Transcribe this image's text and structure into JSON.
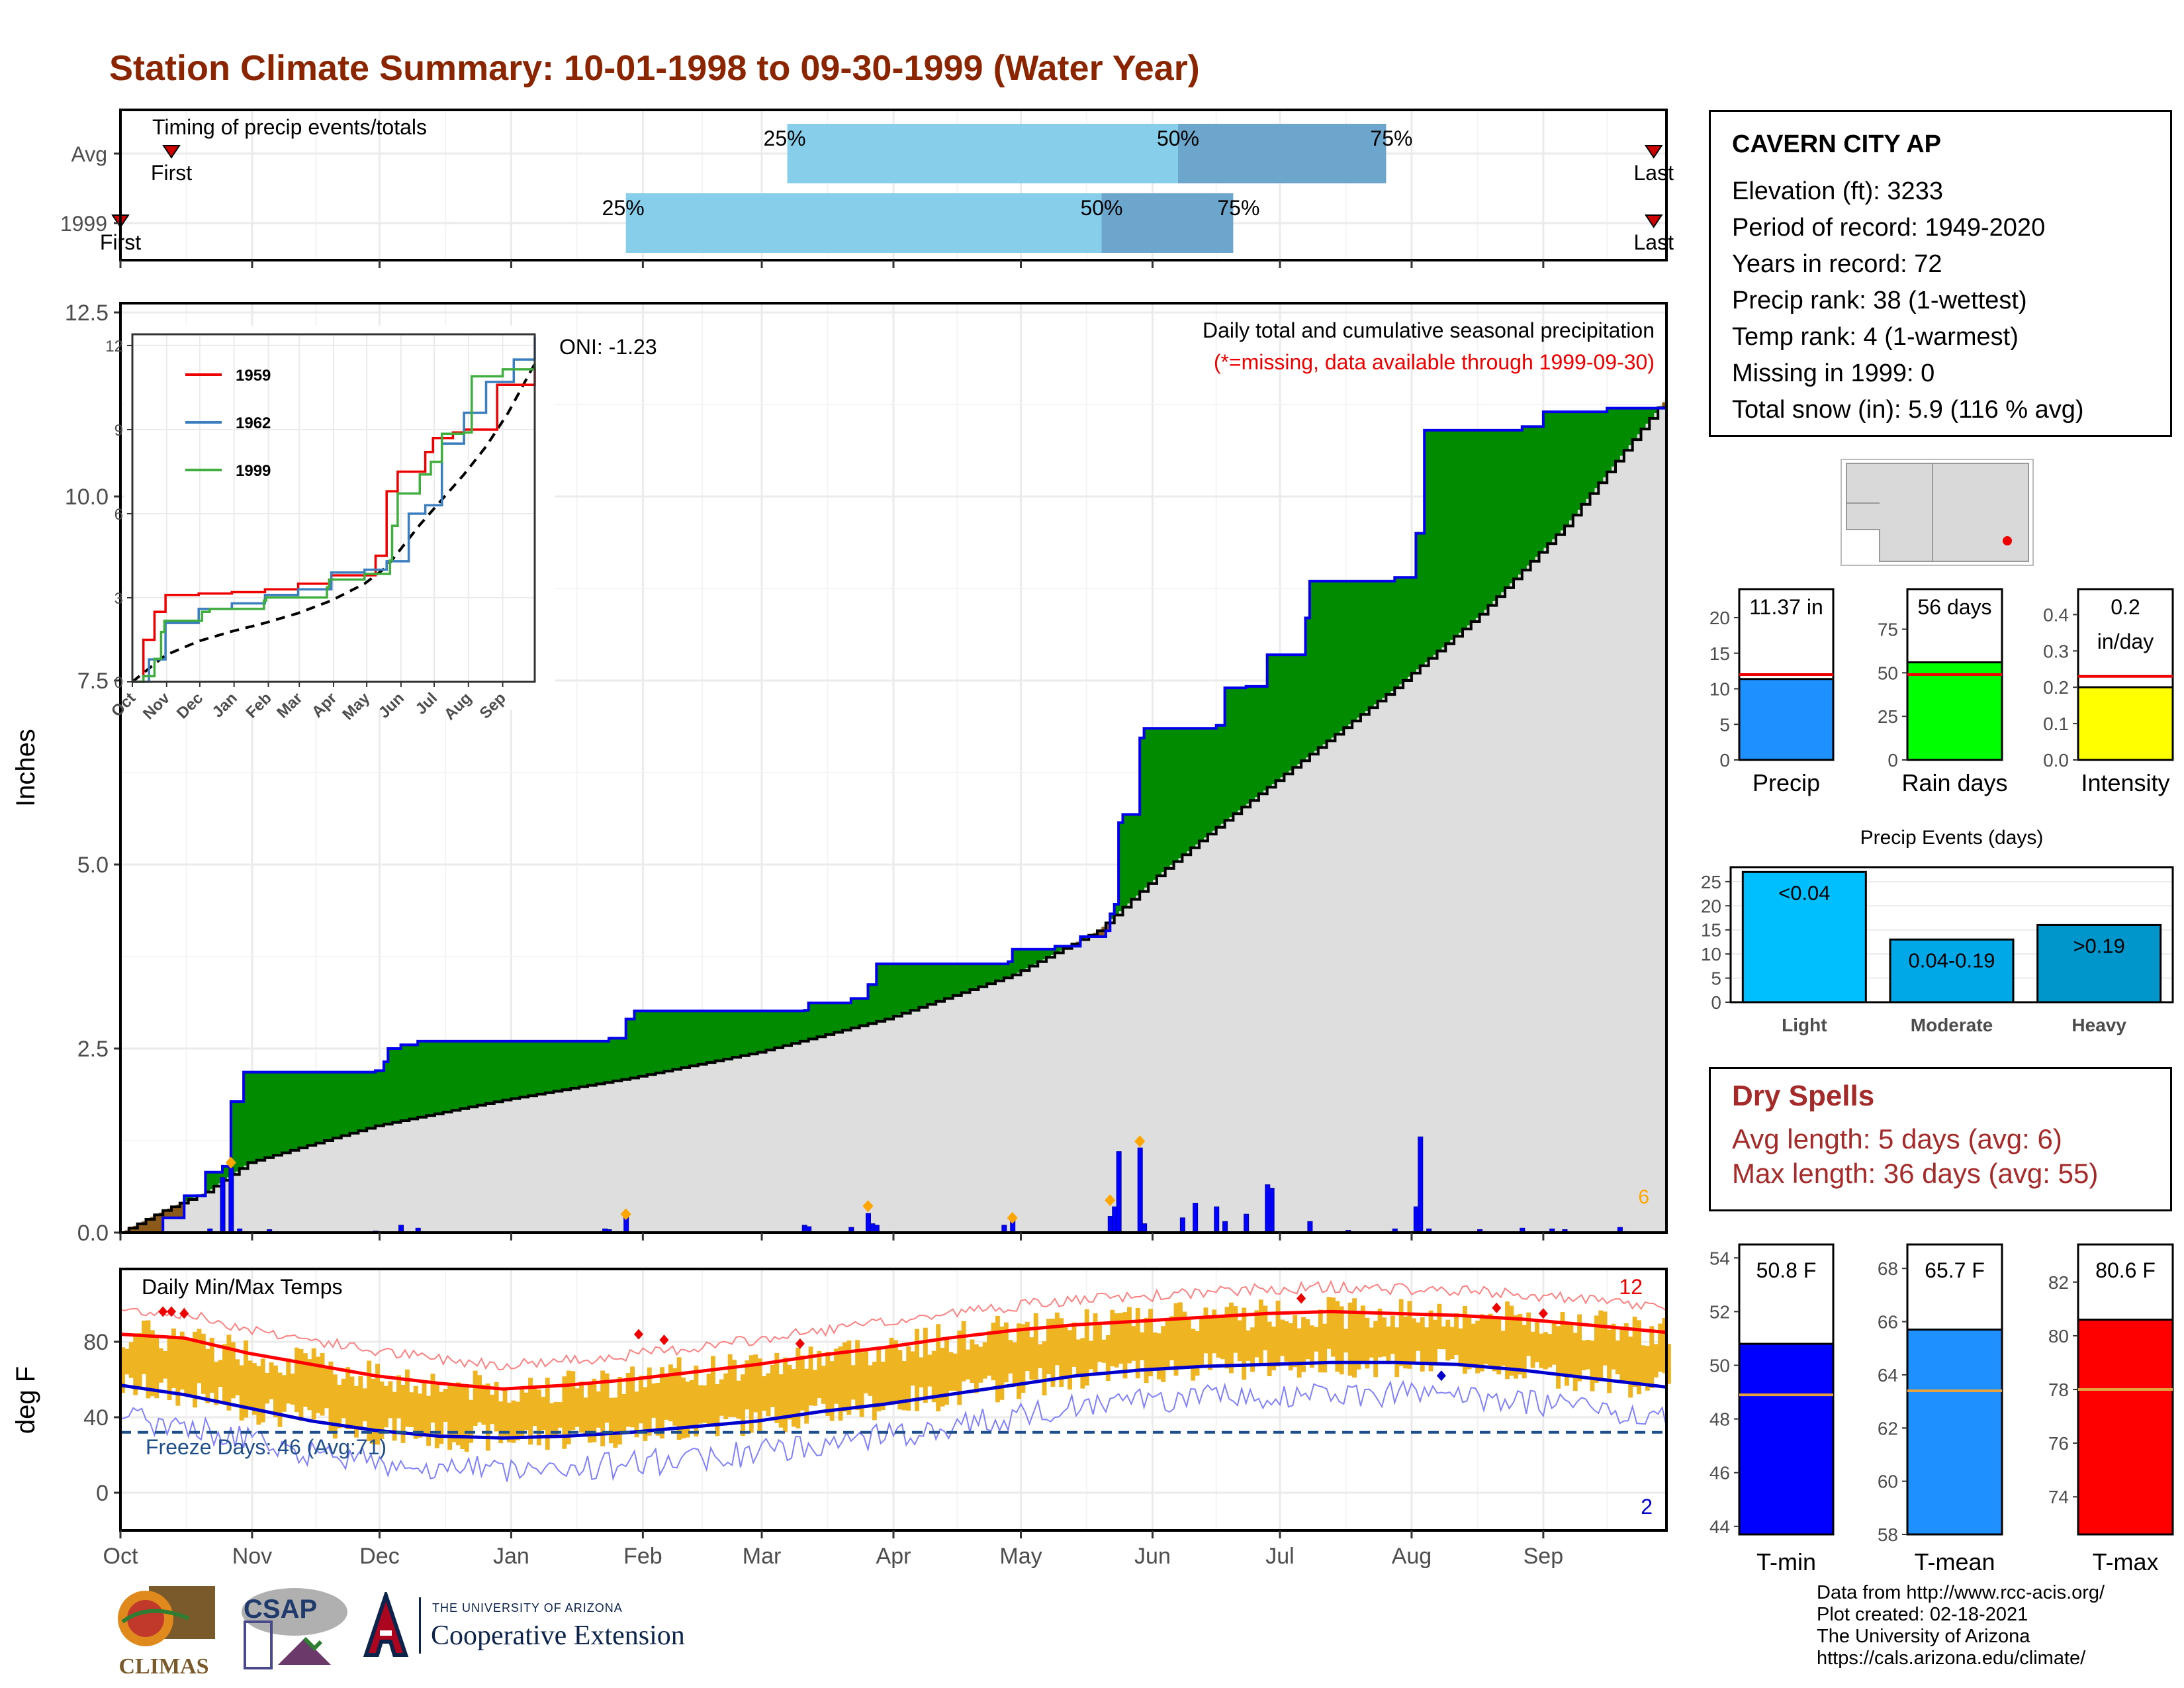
{
  "title": "Station Climate Summary: 10-01-1998 to 09-30-1999 (Water Year)",
  "station": {
    "name": "CAVERN CITY AP",
    "lines": [
      "Elevation (ft): 3233",
      "Period of record: 1949-2020",
      "Years in record: 72",
      "Precip rank: 38 (1-wettest)",
      "Temp rank: 4 (1-warmest)",
      "Missing in 1999: 0",
      "Total snow (in): 5.9 (116 % avg)"
    ]
  },
  "dry_spells": {
    "title": "Dry Spells",
    "avg_length": "Avg length: 5 days (avg: 6)",
    "max_length": "Max length: 36 days (avg: 55)"
  },
  "credits": [
    "Data from http://www.rcc-acis.org/",
    "Plot created: 02-18-2021",
    "The University of Arizona",
    "https://cals.arizona.edu/climate/"
  ],
  "logos": {
    "climas": "CLIMAS",
    "csap": "CSAP",
    "ua_small": "THE UNIVERSITY OF ARIZONA",
    "ua_big": "Cooperative Extension"
  },
  "colors": {
    "title": "#8B2500",
    "green_surplus": "#008B00",
    "brown_deficit": "#8B5A1A",
    "daily_bar": "#0000FF",
    "tmax_line": "#FF0000",
    "tmin_line": "#0000CC",
    "temp_bar": "#EEB422",
    "timing_light": "#87CEEB",
    "timing_dark": "#6CA6CD",
    "freeze_line": "#1F4E8C"
  },
  "months": [
    "Oct",
    "Nov",
    "Dec",
    "Jan",
    "Feb",
    "Mar",
    "Apr",
    "May",
    "Jun",
    "Jul",
    "Aug",
    "Sep"
  ],
  "chart_data": [
    {
      "id": "timing",
      "type": "bar",
      "title": "Timing of precip events/totals",
      "rows": [
        {
          "label": "Avg",
          "first": "Oct 13",
          "last": "Sep 27",
          "p25": "Mar 7",
          "p50": "Jun 7",
          "p75": "Jul 26"
        },
        {
          "label": "1999",
          "first": "Oct 1",
          "last": "Sep 27",
          "p25": "Jan 28",
          "p50": "May 20",
          "p75": "Jun 20"
        }
      ],
      "pct_labels": [
        "25%",
        "50%",
        "75%"
      ],
      "first_label": "First",
      "last_label": "Last"
    },
    {
      "id": "precip_main",
      "type": "area",
      "title": "Daily total and cumulative seasonal precipitation",
      "subtitle": "(*=missing, data available through 1999-09-30)",
      "annotation": "ONI: -1.23",
      "corner_count": "6",
      "ylabel": "Inches",
      "ylim": [
        0,
        12.5
      ],
      "yticks": [
        0,
        2.5,
        5.0,
        7.5,
        10.0,
        12.5
      ],
      "ytick_labels": [
        "0.0",
        "2.5",
        "5.0",
        "7.5",
        "10.0",
        "12.5"
      ],
      "cumulative_1999": [
        [
          0,
          0
        ],
        [
          10,
          0.2
        ],
        [
          15,
          0.5
        ],
        [
          20,
          0.82
        ],
        [
          24,
          0.9
        ],
        [
          26,
          1.78
        ],
        [
          29,
          2.18
        ],
        [
          60,
          2.2
        ],
        [
          62,
          2.32
        ],
        [
          63,
          2.5
        ],
        [
          66,
          2.55
        ],
        [
          70,
          2.6
        ],
        [
          114,
          2.6
        ],
        [
          115,
          2.64
        ],
        [
          119,
          2.9
        ],
        [
          121,
          3.01
        ],
        [
          161,
          3.02
        ],
        [
          162,
          3.12
        ],
        [
          172,
          3.18
        ],
        [
          176,
          3.37
        ],
        [
          178,
          3.65
        ],
        [
          209,
          3.68
        ],
        [
          210,
          3.85
        ],
        [
          220,
          3.89
        ],
        [
          226,
          4.02
        ],
        [
          232,
          4.1
        ],
        [
          233,
          4.33
        ],
        [
          234,
          4.46
        ],
        [
          235,
          5.57
        ],
        [
          236,
          5.68
        ],
        [
          240,
          6.72
        ],
        [
          241,
          6.85
        ],
        [
          258,
          6.89
        ],
        [
          260,
          7.4
        ],
        [
          265,
          7.42
        ],
        [
          270,
          7.85
        ],
        [
          279,
          8.35
        ],
        [
          280,
          8.85
        ],
        [
          300,
          8.9
        ],
        [
          305,
          9.5
        ],
        [
          307,
          10.9
        ],
        [
          330,
          10.95
        ],
        [
          335,
          11.15
        ],
        [
          350,
          11.2
        ],
        [
          364,
          11.37
        ]
      ],
      "cumulative_avg": [
        [
          0,
          0
        ],
        [
          10,
          0.3
        ],
        [
          20,
          0.55
        ],
        [
          30,
          0.95
        ],
        [
          60,
          1.45
        ],
        [
          90,
          1.8
        ],
        [
          120,
          2.1
        ],
        [
          150,
          2.45
        ],
        [
          180,
          2.9
        ],
        [
          210,
          3.5
        ],
        [
          230,
          4.1
        ],
        [
          245,
          4.9
        ],
        [
          260,
          5.6
        ],
        [
          280,
          6.5
        ],
        [
          300,
          7.4
        ],
        [
          320,
          8.4
        ],
        [
          340,
          9.6
        ],
        [
          355,
          10.7
        ],
        [
          364,
          11.35
        ]
      ],
      "daily_bars": [
        [
          21,
          0.05
        ],
        [
          24,
          0.75
        ],
        [
          26,
          0.88
        ],
        [
          28,
          0.05
        ],
        [
          35,
          0.04
        ],
        [
          60,
          0.02
        ],
        [
          66,
          0.1
        ],
        [
          70,
          0.06
        ],
        [
          114,
          0.05
        ],
        [
          115,
          0.04
        ],
        [
          119,
          0.25
        ],
        [
          161,
          0.1
        ],
        [
          162,
          0.08
        ],
        [
          172,
          0.07
        ],
        [
          176,
          0.26
        ],
        [
          177,
          0.12
        ],
        [
          178,
          0.1
        ],
        [
          208,
          0.1
        ],
        [
          210,
          0.17
        ],
        [
          233,
          0.22
        ],
        [
          234,
          0.35
        ],
        [
          235,
          1.1
        ],
        [
          240,
          1.15
        ],
        [
          241,
          0.12
        ],
        [
          250,
          0.2
        ],
        [
          253,
          0.4
        ],
        [
          258,
          0.35
        ],
        [
          260,
          0.15
        ],
        [
          265,
          0.25
        ],
        [
          270,
          0.65
        ],
        [
          271,
          0.6
        ],
        [
          280,
          0.15
        ],
        [
          289,
          0.03
        ],
        [
          300,
          0.05
        ],
        [
          305,
          0.35
        ],
        [
          306,
          1.3
        ],
        [
          308,
          0.05
        ],
        [
          320,
          0.04
        ],
        [
          330,
          0.06
        ],
        [
          337,
          0.05
        ],
        [
          340,
          0.04
        ],
        [
          353,
          0.07
        ]
      ],
      "heavy_event_markers": [
        [
          26,
          0.95
        ],
        [
          119,
          0.25
        ],
        [
          176,
          0.36
        ],
        [
          210,
          0.2
        ],
        [
          233,
          0.44
        ],
        [
          240,
          1.24
        ]
      ]
    },
    {
      "id": "inset_cumulative",
      "type": "line",
      "yticks": [
        0,
        3,
        6,
        9,
        12
      ],
      "ylim": [
        0,
        12.4
      ],
      "series": [
        {
          "name": "1959",
          "color": "#EE0000",
          "points": [
            [
              0,
              0
            ],
            [
              10,
              1.5
            ],
            [
              20,
              2.5
            ],
            [
              30,
              3.1
            ],
            [
              60,
              3.15
            ],
            [
              90,
              3.2
            ],
            [
              120,
              3.3
            ],
            [
              150,
              3.5
            ],
            [
              180,
              3.8
            ],
            [
              220,
              4.5
            ],
            [
              230,
              6.8
            ],
            [
              240,
              7.5
            ],
            [
              250,
              7.5
            ],
            [
              265,
              8.2
            ],
            [
              272,
              8.7
            ],
            [
              290,
              8.9
            ],
            [
              300,
              9.0
            ],
            [
              330,
              10.6
            ],
            [
              364,
              11.2
            ]
          ]
        },
        {
          "name": "1962",
          "color": "#3A7EBF",
          "points": [
            [
              0,
              0
            ],
            [
              15,
              0.8
            ],
            [
              30,
              2.1
            ],
            [
              60,
              2.6
            ],
            [
              90,
              2.8
            ],
            [
              120,
              3.1
            ],
            [
              150,
              3.3
            ],
            [
              180,
              3.9
            ],
            [
              210,
              4.0
            ],
            [
              230,
              4.3
            ],
            [
              250,
              6.0
            ],
            [
              265,
              6.3
            ],
            [
              280,
              8.5
            ],
            [
              300,
              9.6
            ],
            [
              320,
              10.7
            ],
            [
              345,
              11.5
            ],
            [
              364,
              12.3
            ]
          ]
        },
        {
          "name": "1999",
          "color": "#3FAE3F",
          "points": [
            [
              0,
              0
            ],
            [
              10,
              0.2
            ],
            [
              20,
              0.82
            ],
            [
              26,
              1.78
            ],
            [
              29,
              2.18
            ],
            [
              63,
              2.5
            ],
            [
              70,
              2.6
            ],
            [
              119,
              2.9
            ],
            [
              121,
              3.01
            ],
            [
              176,
              3.37
            ],
            [
              178,
              3.65
            ],
            [
              210,
              3.85
            ],
            [
              233,
              4.33
            ],
            [
              235,
              5.57
            ],
            [
              240,
              6.72
            ],
            [
              260,
              7.4
            ],
            [
              270,
              7.85
            ],
            [
              280,
              8.85
            ],
            [
              300,
              8.9
            ],
            [
              307,
              10.9
            ],
            [
              335,
              11.15
            ],
            [
              364,
              11.37
            ]
          ]
        }
      ],
      "average_points": [
        [
          0,
          0
        ],
        [
          30,
          0.95
        ],
        [
          60,
          1.45
        ],
        [
          90,
          1.8
        ],
        [
          120,
          2.1
        ],
        [
          150,
          2.45
        ],
        [
          180,
          2.9
        ],
        [
          210,
          3.5
        ],
        [
          230,
          4.1
        ],
        [
          260,
          5.6
        ],
        [
          280,
          6.5
        ],
        [
          300,
          7.4
        ],
        [
          320,
          8.4
        ],
        [
          340,
          9.6
        ],
        [
          364,
          11.35
        ]
      ]
    },
    {
      "id": "temps",
      "type": "line",
      "title": "Daily Min/Max Temps",
      "ylabel": "deg F",
      "yticks": [
        0,
        40,
        80
      ],
      "ylim": [
        -20,
        107
      ],
      "freeze_label": "Freeze Days: 46 (Avg:71)",
      "freeze_line_value": 32,
      "record_high_count": "12",
      "record_low_count": "2",
      "tmax_normal": [
        [
          0,
          84
        ],
        [
          15,
          82
        ],
        [
          30,
          74
        ],
        [
          45,
          68
        ],
        [
          60,
          62
        ],
        [
          75,
          58
        ],
        [
          90,
          55
        ],
        [
          105,
          57
        ],
        [
          120,
          60
        ],
        [
          135,
          64
        ],
        [
          150,
          68
        ],
        [
          165,
          73
        ],
        [
          180,
          77
        ],
        [
          195,
          82
        ],
        [
          210,
          86
        ],
        [
          225,
          89
        ],
        [
          240,
          91
        ],
        [
          255,
          93
        ],
        [
          270,
          95
        ],
        [
          285,
          96
        ],
        [
          300,
          95
        ],
        [
          315,
          94
        ],
        [
          330,
          92
        ],
        [
          345,
          89
        ],
        [
          364,
          85
        ]
      ],
      "tmin_normal": [
        [
          0,
          57
        ],
        [
          15,
          52
        ],
        [
          30,
          45
        ],
        [
          45,
          38
        ],
        [
          60,
          33
        ],
        [
          75,
          30
        ],
        [
          90,
          29
        ],
        [
          105,
          30
        ],
        [
          120,
          32
        ],
        [
          135,
          35
        ],
        [
          150,
          38
        ],
        [
          165,
          43
        ],
        [
          180,
          47
        ],
        [
          195,
          52
        ],
        [
          210,
          57
        ],
        [
          225,
          62
        ],
        [
          240,
          65
        ],
        [
          255,
          67
        ],
        [
          270,
          68
        ],
        [
          285,
          69
        ],
        [
          300,
          69
        ],
        [
          315,
          68
        ],
        [
          330,
          65
        ],
        [
          345,
          61
        ],
        [
          364,
          56
        ]
      ],
      "record_high_markers": [
        [
          10,
          96
        ],
        [
          12,
          96
        ],
        [
          15,
          95
        ],
        [
          122,
          84
        ],
        [
          128,
          81
        ],
        [
          160,
          79
        ],
        [
          278,
          103
        ],
        [
          324,
          98
        ],
        [
          335,
          95
        ]
      ],
      "record_low_markers": [
        [
          311,
          62
        ]
      ]
    },
    {
      "id": "summary_precip",
      "type": "bar",
      "panels": [
        {
          "label": "Precip",
          "value": 11.37,
          "value_label": "11.37 in",
          "avg": 12.0,
          "ylim": [
            0,
            24
          ],
          "yticks": [
            0,
            5,
            10,
            15,
            20
          ],
          "color": "#1E90FF"
        },
        {
          "label": "Rain days",
          "value": 56,
          "value_label": "56 days",
          "avg": 49,
          "ylim": [
            0,
            98
          ],
          "yticks": [
            0,
            25,
            50,
            75
          ],
          "color": "#00FF00"
        },
        {
          "label": "Intensity",
          "value": 0.2,
          "value_label": "0.2\nin/day",
          "avg": 0.23,
          "ylim": [
            0,
            0.47
          ],
          "yticks": [
            0.0,
            0.1,
            0.2,
            0.3,
            0.4
          ],
          "ytick_labels": [
            "0.0",
            "0.1",
            "0.2",
            "0.3",
            "0.4"
          ],
          "color": "#FFFF00"
        }
      ]
    },
    {
      "id": "precip_events",
      "type": "bar",
      "title": "Precip Events (days)",
      "categories": [
        "Light",
        "Moderate",
        "Heavy"
      ],
      "values": [
        27,
        13,
        16
      ],
      "bar_labels": [
        "<0.04",
        "0.04-0.19",
        ">0.19"
      ],
      "colors": [
        "#00BFFF",
        "#00A8E8",
        "#0096CC"
      ],
      "ylim": [
        0,
        28
      ],
      "yticks": [
        0,
        5,
        10,
        15,
        20,
        25
      ]
    },
    {
      "id": "summary_temps",
      "type": "bar",
      "panels": [
        {
          "label": "T-min",
          "value": 50.8,
          "value_label": "50.8 F",
          "avg": 48.9,
          "ylim": [
            43.7,
            54.5
          ],
          "yticks": [
            44,
            46,
            48,
            50,
            52,
            54
          ],
          "color": "#0000FF"
        },
        {
          "label": "T-mean",
          "value": 65.7,
          "value_label": "65.7 F",
          "avg": 63.4,
          "ylim": [
            58,
            68.9
          ],
          "yticks": [
            58,
            60,
            62,
            64,
            66,
            68
          ],
          "color": "#1E90FF"
        },
        {
          "label": "T-max",
          "value": 80.6,
          "value_label": "80.6 F",
          "avg": 78.0,
          "ylim": [
            72.6,
            83.4
          ],
          "yticks": [
            74,
            76,
            78,
            80,
            82
          ],
          "color": "#FF0000"
        }
      ]
    }
  ]
}
